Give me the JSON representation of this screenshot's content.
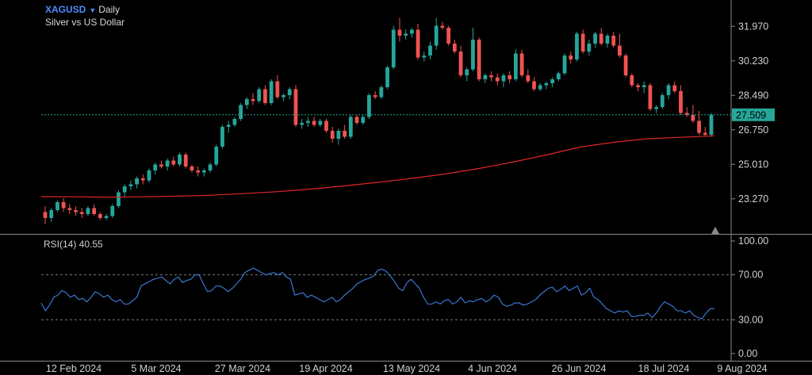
{
  "header": {
    "symbol": "XAGUSD",
    "timeframe": "Daily",
    "subtitle": "Silver vs US Dollar"
  },
  "colors": {
    "background": "#000000",
    "up": "#26a69a",
    "down": "#ef5350",
    "ma": "#e0262a",
    "rsi_line": "#3d7fe0",
    "last_price": "#26a69a"
  },
  "chart_data": [
    {
      "type": "candlestick",
      "title": "XAGUSD",
      "subtitle": "Silver vs US Dollar",
      "ylim": [
        21.5,
        33.3
      ],
      "yticks": [
        "31.970",
        "30.230",
        "28.490",
        "26.750",
        "25.010",
        "23.270"
      ],
      "last_price": "27.509",
      "x_labels": [
        "12 Feb 2024",
        "5 Mar 2024",
        "27 Mar 2024",
        "19 Apr 2024",
        "13 May 2024",
        "4 Jun 2024",
        "26 Jun 2024",
        "18 Jul 2024",
        "9 Aug 2024"
      ],
      "candles": [
        [
          22.6,
          22.9,
          22.0,
          22.3
        ],
        [
          22.3,
          22.8,
          22.1,
          22.7
        ],
        [
          22.7,
          23.2,
          22.6,
          23.1
        ],
        [
          23.1,
          23.3,
          22.6,
          22.8
        ],
        [
          22.8,
          23.0,
          22.5,
          22.7
        ],
        [
          22.7,
          22.9,
          22.4,
          22.6
        ],
        [
          22.6,
          22.8,
          22.3,
          22.5
        ],
        [
          22.5,
          22.9,
          22.4,
          22.8
        ],
        [
          22.8,
          23.0,
          22.4,
          22.5
        ],
        [
          22.5,
          22.6,
          22.2,
          22.3
        ],
        [
          22.3,
          22.5,
          22.2,
          22.4
        ],
        [
          22.4,
          23.0,
          22.3,
          22.9
        ],
        [
          22.9,
          23.7,
          22.8,
          23.6
        ],
        [
          23.6,
          24.0,
          23.4,
          23.9
        ],
        [
          23.9,
          24.2,
          23.7,
          24.0
        ],
        [
          24.0,
          24.4,
          23.8,
          24.3
        ],
        [
          24.3,
          24.5,
          24.0,
          24.2
        ],
        [
          24.2,
          24.8,
          24.1,
          24.7
        ],
        [
          24.7,
          25.1,
          24.5,
          25.0
        ],
        [
          25.0,
          25.2,
          24.8,
          24.9
        ],
        [
          24.9,
          25.3,
          24.7,
          25.2
        ],
        [
          25.2,
          25.4,
          24.9,
          25.0
        ],
        [
          25.0,
          25.6,
          24.9,
          25.5
        ],
        [
          25.5,
          25.6,
          24.8,
          24.9
        ],
        [
          24.9,
          25.0,
          24.6,
          24.7
        ],
        [
          24.7,
          24.9,
          24.4,
          24.6
        ],
        [
          24.6,
          24.8,
          24.4,
          24.7
        ],
        [
          24.7,
          25.1,
          24.6,
          25.0
        ],
        [
          25.0,
          26.0,
          24.9,
          25.9
        ],
        [
          25.9,
          27.0,
          25.8,
          26.9
        ],
        [
          26.9,
          27.2,
          26.6,
          27.0
        ],
        [
          27.0,
          27.4,
          26.9,
          27.3
        ],
        [
          27.3,
          28.1,
          27.2,
          28.0
        ],
        [
          28.0,
          28.4,
          27.8,
          28.3
        ],
        [
          28.3,
          28.6,
          28.0,
          28.2
        ],
        [
          28.2,
          28.9,
          28.1,
          28.8
        ],
        [
          28.8,
          29.0,
          28.0,
          28.1
        ],
        [
          28.1,
          29.3,
          28.0,
          29.2
        ],
        [
          29.2,
          29.5,
          28.3,
          28.4
        ],
        [
          28.4,
          28.6,
          28.2,
          28.5
        ],
        [
          28.5,
          28.9,
          28.3,
          28.8
        ],
        [
          28.8,
          29.0,
          26.9,
          27.0
        ],
        [
          27.0,
          27.3,
          26.8,
          27.1
        ],
        [
          27.1,
          27.4,
          26.9,
          27.2
        ],
        [
          27.2,
          27.4,
          26.9,
          27.0
        ],
        [
          27.0,
          27.3,
          26.9,
          27.2
        ],
        [
          27.2,
          27.3,
          26.6,
          26.7
        ],
        [
          26.7,
          26.9,
          26.1,
          26.3
        ],
        [
          26.3,
          26.8,
          26.0,
          26.7
        ],
        [
          26.7,
          27.0,
          26.3,
          26.4
        ],
        [
          26.4,
          27.5,
          26.3,
          27.4
        ],
        [
          27.4,
          27.5,
          27.0,
          27.1
        ],
        [
          27.1,
          27.5,
          27.0,
          27.4
        ],
        [
          27.4,
          28.6,
          27.3,
          28.5
        ],
        [
          28.5,
          28.7,
          28.3,
          28.4
        ],
        [
          28.4,
          29.0,
          28.3,
          28.9
        ],
        [
          28.9,
          30.0,
          28.8,
          29.9
        ],
        [
          29.9,
          32.0,
          29.8,
          31.8
        ],
        [
          31.8,
          32.4,
          31.2,
          31.5
        ],
        [
          31.5,
          31.8,
          31.3,
          31.6
        ],
        [
          31.6,
          31.9,
          31.4,
          31.8
        ],
        [
          31.8,
          32.1,
          30.3,
          30.4
        ],
        [
          30.4,
          30.7,
          30.2,
          30.5
        ],
        [
          30.5,
          31.2,
          30.3,
          31.0
        ],
        [
          31.0,
          32.4,
          30.8,
          32.0
        ],
        [
          32.0,
          32.2,
          31.8,
          31.9
        ],
        [
          31.9,
          32.0,
          31.0,
          31.1
        ],
        [
          31.1,
          31.3,
          30.6,
          30.7
        ],
        [
          30.7,
          31.0,
          29.4,
          29.5
        ],
        [
          29.5,
          29.9,
          29.2,
          29.8
        ],
        [
          29.8,
          31.9,
          29.7,
          31.3
        ],
        [
          31.3,
          31.4,
          29.2,
          29.3
        ],
        [
          29.3,
          29.6,
          29.1,
          29.5
        ],
        [
          29.5,
          29.7,
          29.2,
          29.4
        ],
        [
          29.4,
          29.6,
          29.0,
          29.2
        ],
        [
          29.2,
          29.6,
          28.9,
          29.5
        ],
        [
          29.5,
          29.7,
          29.1,
          29.3
        ],
        [
          29.3,
          30.8,
          29.2,
          30.6
        ],
        [
          30.6,
          30.8,
          29.4,
          29.5
        ],
        [
          29.5,
          29.8,
          29.1,
          29.2
        ],
        [
          29.2,
          29.4,
          28.7,
          28.8
        ],
        [
          28.8,
          29.1,
          28.7,
          29.0
        ],
        [
          29.0,
          29.2,
          28.8,
          29.1
        ],
        [
          29.1,
          29.4,
          28.9,
          29.3
        ],
        [
          29.3,
          29.7,
          29.2,
          29.6
        ],
        [
          29.6,
          30.6,
          29.5,
          30.5
        ],
        [
          30.5,
          30.7,
          30.1,
          30.3
        ],
        [
          30.3,
          31.7,
          30.2,
          31.6
        ],
        [
          31.6,
          31.8,
          30.6,
          30.7
        ],
        [
          30.7,
          31.3,
          30.5,
          31.1
        ],
        [
          31.1,
          31.7,
          30.9,
          31.6
        ],
        [
          31.6,
          31.9,
          31.0,
          31.1
        ],
        [
          31.1,
          31.6,
          30.9,
          31.5
        ],
        [
          31.5,
          31.7,
          30.9,
          31.0
        ],
        [
          31.0,
          31.6,
          30.4,
          30.5
        ],
        [
          30.5,
          30.6,
          29.4,
          29.5
        ],
        [
          29.5,
          29.6,
          28.9,
          29.0
        ],
        [
          29.0,
          29.1,
          28.7,
          28.9
        ],
        [
          28.9,
          29.2,
          28.6,
          29.0
        ],
        [
          29.0,
          29.1,
          27.7,
          27.8
        ],
        [
          27.8,
          28.0,
          27.6,
          27.9
        ],
        [
          27.9,
          28.6,
          27.8,
          28.5
        ],
        [
          28.5,
          29.1,
          28.3,
          29.0
        ],
        [
          29.0,
          29.2,
          28.6,
          28.7
        ],
        [
          28.7,
          29.0,
          27.5,
          27.6
        ],
        [
          27.6,
          27.9,
          27.4,
          27.5
        ],
        [
          27.5,
          28.0,
          27.1,
          27.2
        ],
        [
          27.2,
          27.7,
          26.5,
          26.6
        ],
        [
          26.6,
          26.9,
          26.4,
          26.5
        ],
        [
          26.5,
          27.6,
          26.4,
          27.51
        ]
      ],
      "ma": [
        23.38,
        23.37,
        23.35,
        23.37,
        23.4,
        23.45,
        23.53,
        23.63,
        23.76,
        23.92,
        24.1,
        24.3,
        24.52,
        24.8,
        25.12,
        25.48,
        25.88,
        26.12,
        26.3,
        26.37,
        26.45
      ],
      "rsi": {
        "label": "RSI(14)",
        "value": "40.55",
        "ylim": [
          0,
          100
        ],
        "levels": [
          70,
          30
        ],
        "yticks": [
          "100.00",
          "70.00",
          "30.00",
          "0.00"
        ],
        "values": [
          45,
          38,
          43,
          50,
          52,
          56,
          54,
          50,
          52,
          48,
          49,
          46,
          50,
          55,
          53,
          50,
          52,
          48,
          46,
          48,
          44,
          44,
          47,
          50,
          60,
          62,
          64,
          66,
          67,
          68,
          65,
          62,
          66,
          68,
          63,
          65,
          66,
          70,
          70,
          62,
          55,
          56,
          60,
          60,
          58,
          55,
          58,
          62,
          66,
          72,
          74,
          76,
          74,
          72,
          70,
          71,
          72,
          70,
          72,
          68,
          66,
          52,
          53,
          54,
          50,
          52,
          50,
          48,
          46,
          48,
          50,
          46,
          48,
          52,
          55,
          58,
          62,
          64,
          66,
          67,
          69,
          74,
          75,
          73,
          69,
          64,
          58,
          56,
          63,
          66,
          62,
          58,
          50,
          44,
          44,
          46,
          44,
          47,
          48,
          44,
          46,
          50,
          45,
          47,
          46,
          48,
          49,
          46,
          48,
          52,
          50,
          44,
          42,
          43,
          45,
          45,
          43,
          44,
          46,
          48,
          52,
          55,
          58,
          59,
          55,
          57,
          60,
          56,
          58,
          60,
          52,
          54,
          58,
          50,
          48,
          44,
          40,
          38,
          36,
          38,
          37,
          38,
          33,
          33,
          34,
          34,
          36,
          32,
          36,
          42,
          46,
          44,
          42,
          38,
          38,
          36,
          38,
          34,
          32,
          31,
          36,
          40,
          40
        ]
      }
    }
  ]
}
